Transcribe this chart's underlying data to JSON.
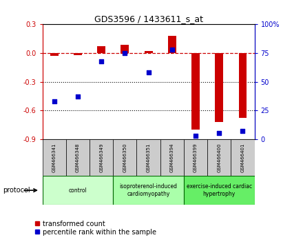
{
  "title": "GDS3596 / 1433611_s_at",
  "samples": [
    "GSM466341",
    "GSM466348",
    "GSM466349",
    "GSM466350",
    "GSM466351",
    "GSM466394",
    "GSM466399",
    "GSM466400",
    "GSM466401"
  ],
  "transformed_count": [
    -0.03,
    -0.02,
    0.07,
    0.09,
    0.02,
    0.18,
    -0.8,
    -0.72,
    -0.68
  ],
  "percentile_rank": [
    33,
    37,
    68,
    75,
    58,
    78,
    3,
    5,
    7
  ],
  "ylim_left": [
    -0.9,
    0.3
  ],
  "ylim_right": [
    0,
    100
  ],
  "yticks_left": [
    -0.9,
    -0.6,
    -0.3,
    0.0,
    0.3
  ],
  "yticks_right": [
    0,
    25,
    50,
    75,
    100
  ],
  "groups": [
    {
      "label": "control",
      "start": 0,
      "end": 3,
      "color": "#ccffcc"
    },
    {
      "label": "isoproterenol-induced\ncardiomyopathy",
      "start": 3,
      "end": 6,
      "color": "#aaffaa"
    },
    {
      "label": "exercise-induced cardiac\nhypertrophy",
      "start": 6,
      "end": 9,
      "color": "#66ee66"
    }
  ],
  "bar_color_red": "#cc0000",
  "bar_color_blue": "#0000cc",
  "dashed_line_color": "#cc0000",
  "dotted_line_color": "#000000",
  "bar_width": 0.35,
  "protocol_label": "protocol",
  "legend_red": "transformed count",
  "legend_blue": "percentile rank within the sample",
  "sample_box_color": "#cccccc",
  "group_colors": [
    "#ccffcc",
    "#aaffaa",
    "#66ee66"
  ],
  "fig_width": 4.4,
  "fig_height": 3.54
}
